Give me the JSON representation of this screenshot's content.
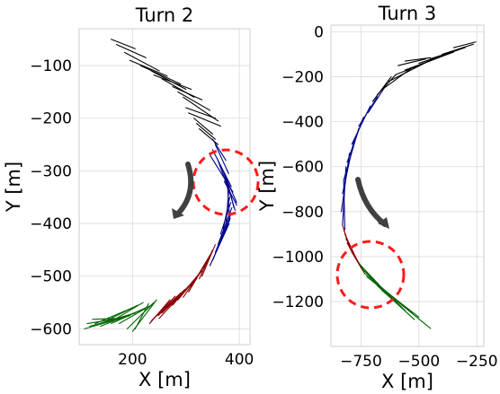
{
  "chart_data": [
    {
      "type": "line",
      "title": "Turn 2",
      "xlabel": "X [m]",
      "ylabel": "Y [m]",
      "xlim": [
        100,
        420
      ],
      "ylim": [
        -630,
        -30
      ],
      "xticks": [
        200,
        400
      ],
      "yticks": [
        -100,
        -200,
        -300,
        -400,
        -500,
        -600
      ],
      "grid": true,
      "colors": {
        "black": "#000000",
        "blue": "#00008b",
        "red": "#8b0000",
        "green": "#006400"
      },
      "series": [
        {
          "color": "black",
          "segments": [
            [
              [
                160,
                -50
              ],
              [
                205,
                -68
              ]
            ],
            [
              [
                170,
                -60
              ],
              [
                225,
                -85
              ]
            ],
            [
              [
                185,
                -75
              ],
              [
                250,
                -110
              ]
            ],
            [
              [
                195,
                -90
              ],
              [
                265,
                -120
              ]
            ],
            [
              [
                215,
                -100
              ],
              [
                290,
                -135
              ]
            ],
            [
              [
                235,
                -110
              ],
              [
                300,
                -145
              ]
            ],
            [
              [
                240,
                -118
              ],
              [
                310,
                -145
              ]
            ],
            [
              [
                255,
                -125
              ],
              [
                315,
                -160
              ]
            ],
            [
              [
                275,
                -140
              ],
              [
                330,
                -165
              ]
            ],
            [
              [
                285,
                -150
              ],
              [
                345,
                -185
              ]
            ],
            [
              [
                295,
                -160
              ],
              [
                360,
                -205
              ]
            ],
            [
              [
                300,
                -180
              ],
              [
                355,
                -200
              ]
            ],
            [
              [
                305,
                -190
              ],
              [
                365,
                -215
              ]
            ],
            [
              [
                315,
                -200
              ],
              [
                350,
                -230
              ]
            ],
            [
              [
                320,
                -210
              ],
              [
                355,
                -240
              ]
            ],
            [
              [
                325,
                -220
              ],
              [
                360,
                -250
              ]
            ]
          ]
        },
        {
          "color": "blue",
          "segments": [
            [
              [
                350,
                -240
              ],
              [
                375,
                -280
              ]
            ],
            [
              [
                355,
                -250
              ],
              [
                380,
                -305
              ]
            ],
            [
              [
                350,
                -260
              ],
              [
                385,
                -330
              ]
            ],
            [
              [
                345,
                -270
              ],
              [
                388,
                -340
              ]
            ],
            [
              [
                360,
                -280
              ],
              [
                385,
                -350
              ]
            ],
            [
              [
                365,
                -290
              ],
              [
                395,
                -360
              ]
            ],
            [
              [
                370,
                -300
              ],
              [
                392,
                -375
              ]
            ],
            [
              [
                375,
                -310
              ],
              [
                390,
                -370
              ]
            ],
            [
              [
                372,
                -320
              ],
              [
                395,
                -365
              ]
            ],
            [
              [
                378,
                -330
              ],
              [
                382,
                -395
              ]
            ],
            [
              [
                380,
                -340
              ],
              [
                375,
                -400
              ]
            ],
            [
              [
                382,
                -350
              ],
              [
                370,
                -410
              ]
            ],
            [
              [
                384,
                -360
              ],
              [
                365,
                -420
              ]
            ],
            [
              [
                386,
                -370
              ],
              [
                360,
                -440
              ]
            ],
            [
              [
                385,
                -380
              ],
              [
                355,
                -455
              ]
            ],
            [
              [
                383,
                -390
              ],
              [
                350,
                -470
              ]
            ],
            [
              [
                381,
                -400
              ],
              [
                345,
                -480
              ]
            ]
          ]
        },
        {
          "color": "red",
          "segments": [
            [
              [
                355,
                -440
              ],
              [
                330,
                -500
              ]
            ],
            [
              [
                350,
                -450
              ],
              [
                325,
                -505
              ]
            ],
            [
              [
                345,
                -460
              ],
              [
                310,
                -520
              ]
            ],
            [
              [
                340,
                -470
              ],
              [
                305,
                -530
              ]
            ],
            [
              [
                335,
                -480
              ],
              [
                295,
                -540
              ]
            ],
            [
              [
                330,
                -490
              ],
              [
                285,
                -545
              ]
            ],
            [
              [
                325,
                -495
              ],
              [
                275,
                -555
              ]
            ],
            [
              [
                320,
                -505
              ],
              [
                265,
                -560
              ]
            ],
            [
              [
                312,
                -512
              ],
              [
                255,
                -570
              ]
            ],
            [
              [
                305,
                -520
              ],
              [
                250,
                -580
              ]
            ],
            [
              [
                298,
                -525
              ],
              [
                248,
                -575
              ]
            ],
            [
              [
                290,
                -532
              ],
              [
                240,
                -580
              ]
            ],
            [
              [
                280,
                -538
              ],
              [
                235,
                -585
              ]
            ],
            [
              [
                270,
                -545
              ],
              [
                232,
                -590
              ]
            ]
          ]
        },
        {
          "color": "green",
          "segments": [
            [
              [
                245,
                -545
              ],
              [
                200,
                -605
              ]
            ],
            [
              [
                240,
                -550
              ],
              [
                190,
                -600
              ]
            ],
            [
              [
                235,
                -555
              ],
              [
                175,
                -590
              ]
            ],
            [
              [
                225,
                -560
              ],
              [
                160,
                -590
              ]
            ],
            [
              [
                215,
                -565
              ],
              [
                140,
                -595
              ]
            ],
            [
              [
                205,
                -570
              ],
              [
                120,
                -595
              ]
            ],
            [
              [
                195,
                -575
              ],
              [
                110,
                -600
              ]
            ],
            [
              [
                185,
                -578
              ],
              [
                115,
                -590
              ]
            ],
            [
              [
                175,
                -580
              ],
              [
                125,
                -582
              ]
            ],
            [
              [
                210,
                -555
              ],
              [
                150,
                -585
              ]
            ],
            [
              [
                220,
                -550
              ],
              [
                170,
                -580
              ]
            ],
            [
              [
                200,
                -560
              ],
              [
                130,
                -590
              ]
            ],
            [
              [
                230,
                -552
              ],
              [
                205,
                -600
              ]
            ]
          ]
        }
      ],
      "annotations": [
        "clockwise arrow",
        "red dashed circle"
      ]
    },
    {
      "type": "line",
      "title": "Turn 3",
      "xlabel": "X [m]",
      "ylabel": "Y [m]",
      "xlim": [
        -880,
        -220
      ],
      "ylim": [
        -1400,
        30
      ],
      "xticks": [
        -750,
        -500,
        -250
      ],
      "yticks": [
        0,
        -200,
        -400,
        -600,
        -800,
        -1000,
        -1200
      ],
      "grid": true,
      "colors": {
        "black": "#000000",
        "blue": "#00008b",
        "red": "#8b0000",
        "green": "#006400"
      },
      "series": [
        {
          "color": "black",
          "segments": [
            [
              [
                -255,
                -45
              ],
              [
                -350,
                -70
              ]
            ],
            [
              [
                -265,
                -55
              ],
              [
                -400,
                -100
              ]
            ],
            [
              [
                -300,
                -70
              ],
              [
                -450,
                -120
              ]
            ],
            [
              [
                -330,
                -80
              ],
              [
                -500,
                -140
              ]
            ],
            [
              [
                -350,
                -90
              ],
              [
                -560,
                -170
              ]
            ],
            [
              [
                -380,
                -100
              ],
              [
                -600,
                -190
              ]
            ],
            [
              [
                -420,
                -110
              ],
              [
                -630,
                -220
              ]
            ],
            [
              [
                -450,
                -115
              ],
              [
                -560,
                -130
              ]
            ],
            [
              [
                -470,
                -120
              ],
              [
                -590,
                -150
              ]
            ],
            [
              [
                -530,
                -160
              ],
              [
                -650,
                -250
              ]
            ],
            [
              [
                -600,
                -190
              ],
              [
                -680,
                -280
              ]
            ],
            [
              [
                -620,
                -200
              ],
              [
                -700,
                -310
              ]
            ]
          ]
        },
        {
          "color": "blue",
          "segments": [
            [
              [
                -650,
                -250
              ],
              [
                -720,
                -360
              ]
            ],
            [
              [
                -680,
                -290
              ],
              [
                -760,
                -420
              ]
            ],
            [
              [
                -710,
                -330
              ],
              [
                -790,
                -500
              ]
            ],
            [
              [
                -740,
                -380
              ],
              [
                -810,
                -580
              ]
            ],
            [
              [
                -760,
                -430
              ],
              [
                -825,
                -660
              ]
            ],
            [
              [
                -780,
                -480
              ],
              [
                -830,
                -720
              ]
            ],
            [
              [
                -800,
                -540
              ],
              [
                -835,
                -800
              ]
            ],
            [
              [
                -815,
                -600
              ],
              [
                -830,
                -860
              ]
            ],
            [
              [
                -825,
                -660
              ],
              [
                -820,
                -880
              ]
            ]
          ]
        },
        {
          "color": "red",
          "segments": [
            [
              [
                -830,
                -860
              ],
              [
                -800,
                -960
              ]
            ],
            [
              [
                -825,
                -880
              ],
              [
                -790,
                -980
              ]
            ],
            [
              [
                -820,
                -900
              ],
              [
                -770,
                -1010
              ]
            ],
            [
              [
                -815,
                -920
              ],
              [
                -760,
                -1030
              ]
            ],
            [
              [
                -810,
                -940
              ],
              [
                -750,
                -1050
              ]
            ],
            [
              [
                -800,
                -960
              ],
              [
                -740,
                -1060
              ]
            ],
            [
              [
                -790,
                -980
              ],
              [
                -735,
                -1075
              ]
            ]
          ]
        },
        {
          "color": "green",
          "segments": [
            [
              [
                -760,
                -1030
              ],
              [
                -650,
                -1150
              ]
            ],
            [
              [
                -750,
                -1050
              ],
              [
                -600,
                -1200
              ]
            ],
            [
              [
                -740,
                -1060
              ],
              [
                -570,
                -1230
              ]
            ],
            [
              [
                -735,
                -1075
              ],
              [
                -530,
                -1250
              ]
            ],
            [
              [
                -725,
                -1090
              ],
              [
                -500,
                -1270
              ]
            ],
            [
              [
                -700,
                -1110
              ],
              [
                -450,
                -1320
              ]
            ],
            [
              [
                -680,
                -1130
              ],
              [
                -520,
                -1280
              ]
            ],
            [
              [
                -660,
                -1150
              ],
              [
                -560,
                -1240
              ]
            ]
          ]
        }
      ],
      "annotations": [
        "clockwise arrow",
        "red dashed circle"
      ]
    }
  ]
}
